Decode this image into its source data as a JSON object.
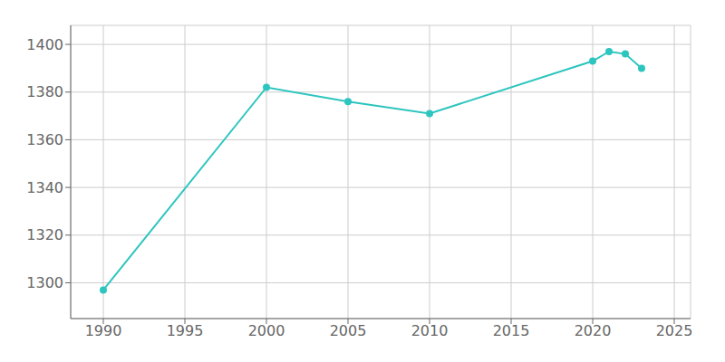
{
  "chart_data": {
    "type": "line",
    "x": [
      1990,
      2000,
      2005,
      2010,
      2020,
      2021,
      2022,
      2023
    ],
    "values": [
      1297,
      1382,
      1376,
      1371,
      1393,
      1397,
      1396,
      1390
    ],
    "color": "#2DC5BF",
    "marker": "circle",
    "xlim": [
      1988,
      2026
    ],
    "ylim": [
      1285,
      1408
    ],
    "xticks": [
      1990,
      1995,
      2000,
      2005,
      2010,
      2015,
      2020,
      2025
    ],
    "yticks": [
      1300,
      1320,
      1340,
      1360,
      1380,
      1400
    ],
    "grid": true
  }
}
